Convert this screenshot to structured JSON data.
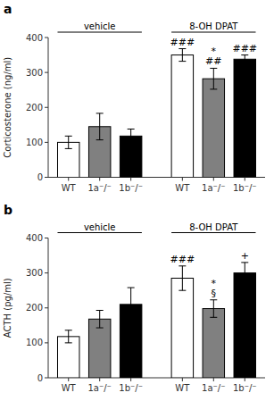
{
  "chart_data": [
    {
      "type": "bar",
      "title": "a",
      "y_label": "Corticosterone (ng/ml)",
      "categories": [
        "WT",
        "1a⁻/⁻",
        "1b⁻/⁻",
        "WT",
        "1a⁻/⁻",
        "1b⁻/⁻"
      ],
      "values": [
        100,
        145,
        118,
        350,
        282,
        338
      ],
      "errors": [
        18,
        38,
        20,
        18,
        30,
        12
      ],
      "colors": [
        "white",
        "gray",
        "black",
        "white",
        "gray",
        "black"
      ],
      "group_labels": [
        "vehicle",
        "8-OH DPAT"
      ],
      "annotations": [
        null,
        null,
        null,
        [
          "###"
        ],
        [
          "*",
          "##"
        ],
        [
          "###"
        ]
      ],
      "ylim": [
        0,
        400
      ],
      "yticks": [
        0,
        100,
        200,
        300,
        400
      ],
      "grid": false
    },
    {
      "type": "bar",
      "title": "b",
      "y_label": "ACTH (pg/ml)",
      "categories": [
        "WT",
        "1a⁻/⁻",
        "1b⁻/⁻",
        "WT",
        "1a⁻/⁻",
        "1b⁻/⁻"
      ],
      "values": [
        118,
        168,
        210,
        285,
        198,
        300
      ],
      "errors": [
        18,
        25,
        48,
        35,
        25,
        30
      ],
      "colors": [
        "white",
        "gray",
        "black",
        "white",
        "gray",
        "black"
      ],
      "group_labels": [
        "vehicle",
        "8-OH DPAT"
      ],
      "annotations": [
        null,
        null,
        null,
        [
          "###"
        ],
        [
          "*",
          "§"
        ],
        [
          "+"
        ]
      ],
      "ylim": [
        0,
        400
      ],
      "yticks": [
        0,
        100,
        200,
        300,
        400
      ],
      "grid": false
    }
  ]
}
